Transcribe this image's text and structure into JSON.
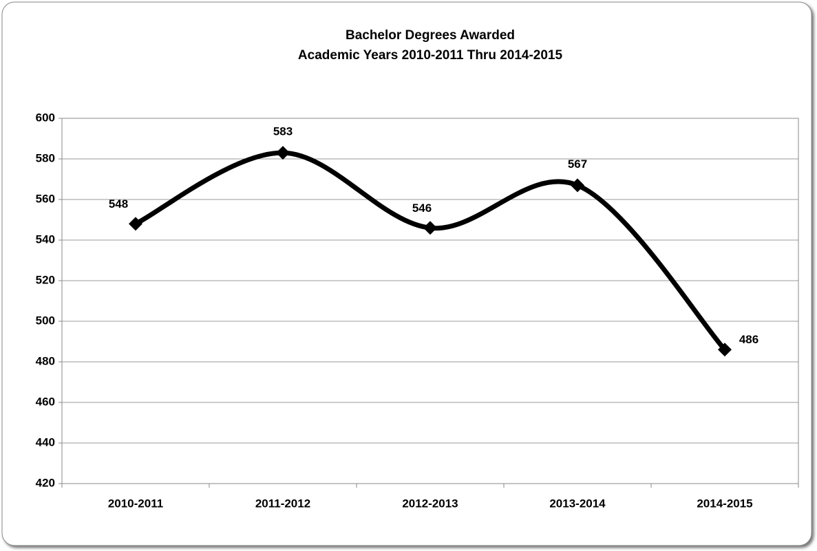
{
  "chart_data": {
    "type": "line",
    "title": "Bachelor Degrees Awarded",
    "subtitle": "Academic Years 2010-2011 Thru 2014-2015",
    "categories": [
      "2010-2011",
      "2011-2012",
      "2012-2013",
      "2013-2014",
      "2014-2015"
    ],
    "values": [
      548,
      583,
      546,
      567,
      486
    ],
    "color": "#000000",
    "ylim": [
      420,
      600
    ],
    "yticks": [
      420,
      440,
      460,
      480,
      500,
      520,
      540,
      560,
      580,
      600
    ],
    "grid": true
  }
}
